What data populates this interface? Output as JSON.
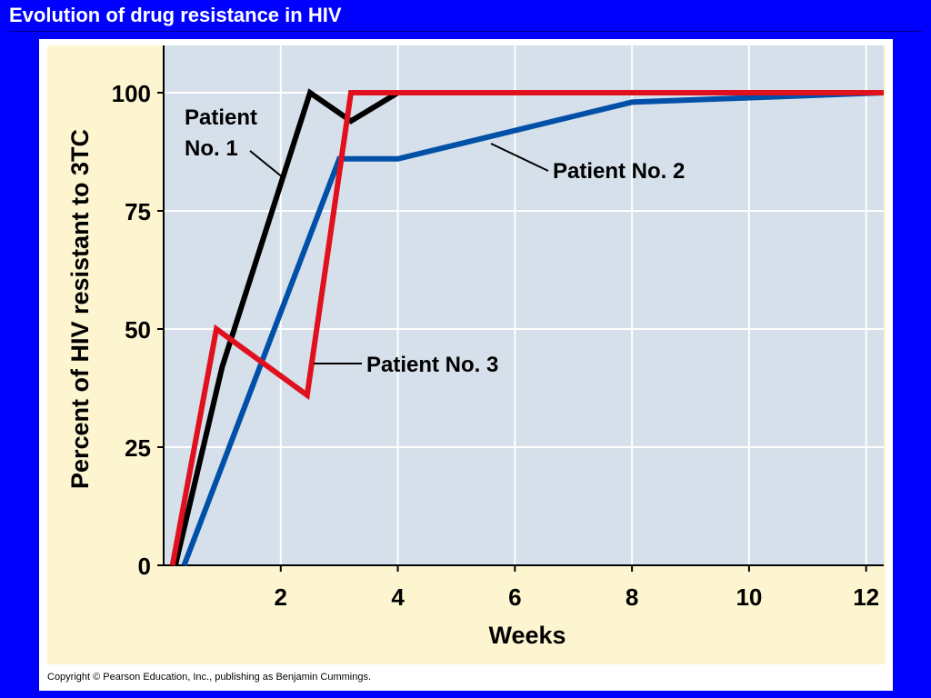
{
  "slide": {
    "title": "Evolution of drug resistance in HIV",
    "copyright": "Copyright © Pearson Education, Inc., publishing as Benjamin Cummings."
  },
  "colors": {
    "background": "#0000ff",
    "panel": "#ffffff",
    "chart_background": "#fdf5cf",
    "plot_area": "#d5e0ea",
    "patient1": "#000000",
    "patient2": "#0050a8",
    "patient3": "#e0101e"
  },
  "chart_data": {
    "type": "line",
    "title": "",
    "xlabel": "Weeks",
    "ylabel": "Percent of HIV resistant to 3TC",
    "xlim": [
      0,
      12.3
    ],
    "ylim": [
      0,
      110
    ],
    "xticks": [
      2,
      4,
      6,
      8,
      10,
      12
    ],
    "yticks": [
      0,
      25,
      50,
      75,
      100
    ],
    "grid": true,
    "legend": "none",
    "series": [
      {
        "name": "Patient No. 1",
        "label_lines": [
          "Patient",
          "No. 1"
        ],
        "color": "#000000",
        "x": [
          0.2,
          1.0,
          2.5,
          3.2,
          4.0,
          12.3
        ],
        "y": [
          0,
          42,
          100,
          94,
          100,
          100
        ]
      },
      {
        "name": "Patient No. 2",
        "label_lines": [
          "Patient No. 2"
        ],
        "color": "#0050a8",
        "x": [
          0.35,
          3.0,
          4.0,
          8.0,
          12.3
        ],
        "y": [
          0,
          86,
          86,
          98,
          100
        ]
      },
      {
        "name": "Patient No. 3",
        "label_lines": [
          "Patient No. 3"
        ],
        "color": "#e0101e",
        "x": [
          0.15,
          0.9,
          2.45,
          3.2,
          12.3
        ],
        "y": [
          0,
          50,
          36,
          100,
          100
        ]
      }
    ],
    "annotations": [
      {
        "text": "Patient\nNo. 1",
        "series": "Patient No. 1"
      },
      {
        "text": "Patient No. 2",
        "series": "Patient No. 2"
      },
      {
        "text": "Patient No. 3",
        "series": "Patient No. 3"
      }
    ]
  }
}
